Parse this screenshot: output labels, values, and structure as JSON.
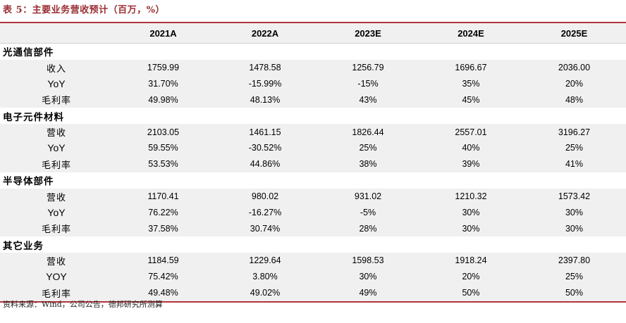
{
  "title": "表 5：主要业务营收预计（百万，%）",
  "headers": [
    "",
    "2021A",
    "2022A",
    "2023E",
    "2024E",
    "2025E"
  ],
  "sections": [
    {
      "name": "光通信部件",
      "rows": [
        {
          "metric": "收入",
          "values": [
            "1759.99",
            "1478.58",
            "1256.79",
            "1696.67",
            "2036.00"
          ]
        },
        {
          "metric": "YoY",
          "values": [
            "31.70%",
            "-15.99%",
            "-15%",
            "35%",
            "20%"
          ]
        },
        {
          "metric": "毛利率",
          "values": [
            "49.98%",
            "48.13%",
            "43%",
            "45%",
            "48%"
          ]
        }
      ]
    },
    {
      "name": "电子元件材料",
      "rows": [
        {
          "metric": "营收",
          "values": [
            "2103.05",
            "1461.15",
            "1826.44",
            "2557.01",
            "3196.27"
          ]
        },
        {
          "metric": "YoY",
          "values": [
            "59.55%",
            "-30.52%",
            "25%",
            "40%",
            "25%"
          ]
        },
        {
          "metric": "毛利率",
          "values": [
            "53.53%",
            "44.86%",
            "38%",
            "39%",
            "41%"
          ]
        }
      ]
    },
    {
      "name": "半导体部件",
      "rows": [
        {
          "metric": "营收",
          "values": [
            "1170.41",
            "980.02",
            "931.02",
            "1210.32",
            "1573.42"
          ]
        },
        {
          "metric": "YoY",
          "values": [
            "76.22%",
            "-16.27%",
            "-5%",
            "30%",
            "30%"
          ]
        },
        {
          "metric": "毛利率",
          "values": [
            "37.58%",
            "30.74%",
            "28%",
            "30%",
            "30%"
          ]
        }
      ]
    },
    {
      "name": "其它业务",
      "rows": [
        {
          "metric": "营收",
          "values": [
            "1184.59",
            "1229.64",
            "1598.53",
            "1918.24",
            "2397.80"
          ]
        },
        {
          "metric": "YOY",
          "values": [
            "75.42%",
            "3.80%",
            "30%",
            "20%",
            "25%"
          ]
        },
        {
          "metric": "毛利率",
          "values": [
            "49.48%",
            "49.02%",
            "49%",
            "50%",
            "50%"
          ]
        }
      ]
    }
  ],
  "source": "资料来源：Wind，公司公告，德邦研究所测算",
  "colors": {
    "accent": "#b2353c",
    "title": "#9a2e33",
    "row_shade": "#f0f0f0"
  }
}
